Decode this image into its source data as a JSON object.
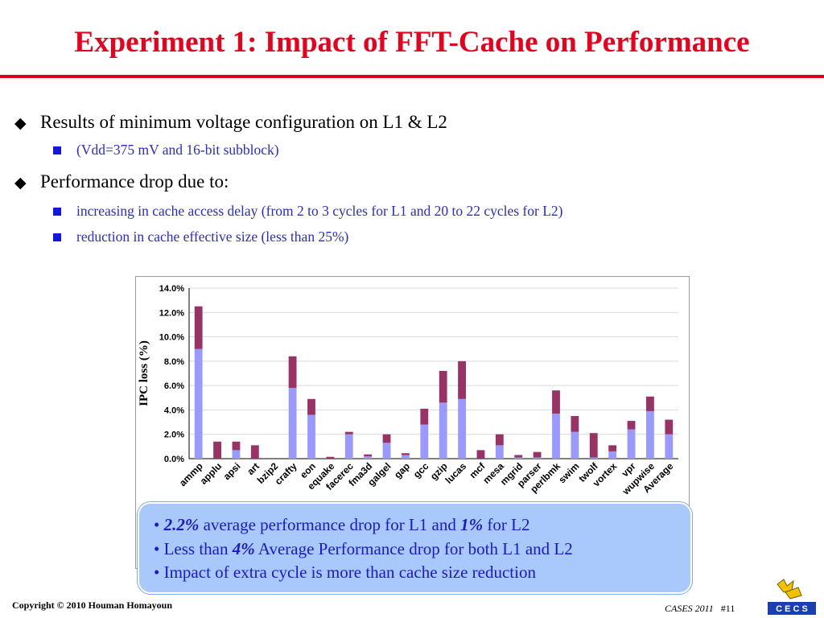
{
  "slide": {
    "title": "Experiment 1: Impact of FFT-Cache on Performance"
  },
  "bullets": [
    {
      "level": 1,
      "text": "Results of minimum voltage configuration on L1 & L2"
    },
    {
      "level": 2,
      "text": "(Vdd=375 mV and 16-bit subblock)"
    },
    {
      "level": 1,
      "text": "Performance drop due to:"
    },
    {
      "level": 2,
      "text": "increasing in cache access delay (from 2 to 3 cycles for L1 and 20 to 22 cycles for L2)"
    },
    {
      "level": 2,
      "text": "reduction in cache effective size (less than 25%)"
    }
  ],
  "chart_data": {
    "type": "bar",
    "stacked": true,
    "title": "",
    "xlabel": "",
    "ylabel": "IPC loss (%)",
    "ylim": [
      0,
      14
    ],
    "yticks": [
      "0.0%",
      "2.0%",
      "4.0%",
      "6.0%",
      "8.0%",
      "10.0%",
      "12.0%",
      "14.0%"
    ],
    "grid": true,
    "legend": "none",
    "categories": [
      "ammp",
      "applu",
      "apsi",
      "art",
      "bzip2",
      "crafty",
      "eon",
      "equake",
      "facerec",
      "fma3d",
      "galgel",
      "gap",
      "gcc",
      "gzip",
      "lucas",
      "mcf",
      "mesa",
      "mgrid",
      "parser",
      "perlbmk",
      "swim",
      "twolf",
      "vortex",
      "vpr",
      "wupwise",
      "Average"
    ],
    "series": [
      {
        "color": "#9999ff",
        "values": [
          9.0,
          0.0,
          0.7,
          0.0,
          0.0,
          5.8,
          3.6,
          0.0,
          2.0,
          0.2,
          1.3,
          0.3,
          2.8,
          4.6,
          4.9,
          0.0,
          1.1,
          0.1,
          0.1,
          3.7,
          2.2,
          0.1,
          0.6,
          2.4,
          3.9,
          2.0
        ]
      },
      {
        "color": "#993366",
        "values": [
          3.5,
          1.4,
          0.7,
          1.1,
          0.0,
          2.6,
          1.3,
          0.15,
          0.2,
          0.15,
          0.7,
          0.15,
          1.3,
          2.6,
          3.1,
          0.7,
          0.9,
          0.2,
          0.45,
          1.9,
          1.3,
          2.0,
          0.5,
          0.7,
          1.2,
          1.2
        ]
      }
    ]
  },
  "callout": {
    "line1_bold": "2.2%",
    "line1_mid": " average performance drop for L1 and ",
    "line1_bold2": "1%",
    "line1_end": " for L2",
    "line2_start": "Less than ",
    "line2_bold": "4%",
    "line2_end": " Average Performance drop for both L1 and L2",
    "line3": "Impact of extra cycle is more than cache size reduction"
  },
  "footer": {
    "copyright": "Copyright © 2010 Houman Homayoun",
    "venue": "CASES 2011",
    "page": "#11",
    "logo_text": "C E C S"
  },
  "colors": {
    "title": "#e8001c",
    "accent_rule": "#d8001c",
    "sub_bullet_text": "#2a2ad6",
    "callout_bg": "#a9c8fb"
  }
}
